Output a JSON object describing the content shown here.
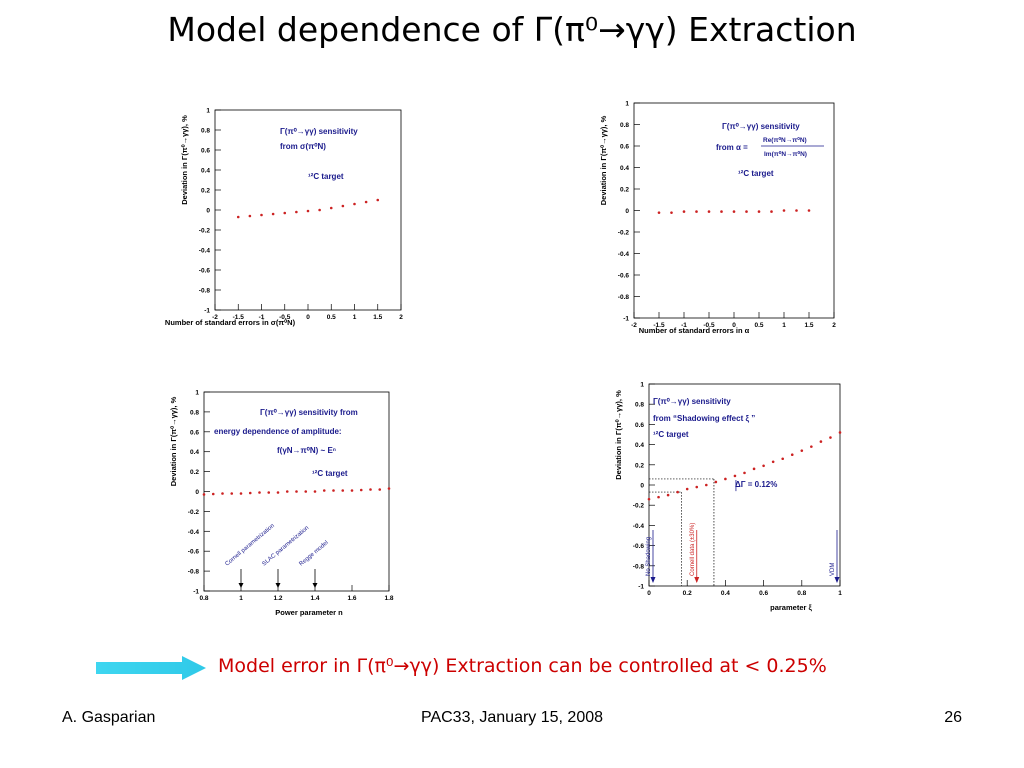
{
  "slide": {
    "title": "Model dependence of Γ(π⁰→γγ) Extraction",
    "conclusion": "Model error in Γ(π⁰→γγ) Extraction can be controlled at < 0.25%",
    "footer_left": "A. Gasparian",
    "footer_center": "PAC33, January 15, 2008",
    "footer_right": "26"
  },
  "colors": {
    "points": "#cc2222",
    "annotation_text": "#1a1a8c",
    "arrow": "#3ed6f0",
    "conclusion": "#cc0000"
  },
  "chart_data": [
    {
      "type": "scatter",
      "ylabel": "Deviation in Γ(π⁰→γγ), %",
      "xlabel": "Number of standard errors in σ(π⁰N)",
      "xlim": [
        -2,
        2
      ],
      "ylim": [
        -1,
        1
      ],
      "xticks": [
        "-2",
        "-1.5",
        "-1",
        "-0.5",
        "0",
        "0.5",
        "1",
        "1.5",
        "2"
      ],
      "yticks": [
        "-1",
        "-0.8",
        "-0.6",
        "-0.4",
        "-0.2",
        "0",
        "0.2",
        "0.4",
        "0.6",
        "0.8",
        "1"
      ],
      "annotations": [
        "Γ(π⁰→γγ) sensitivity",
        "from σ(π⁰N)",
        "¹²C target"
      ],
      "x": [
        -1.5,
        -1.25,
        -1.0,
        -0.75,
        -0.5,
        -0.25,
        0,
        0.25,
        0.5,
        0.75,
        1.0,
        1.25,
        1.5
      ],
      "y": [
        -0.07,
        -0.06,
        -0.05,
        -0.04,
        -0.03,
        -0.02,
        -0.01,
        0.0,
        0.02,
        0.04,
        0.06,
        0.08,
        0.1
      ]
    },
    {
      "type": "scatter",
      "ylabel": "Deviation in Γ(π⁰→γγ), %",
      "xlabel": "Number of standard errors in α",
      "xlim": [
        -2,
        2
      ],
      "ylim": [
        -1,
        1
      ],
      "xticks": [
        "-2",
        "-1.5",
        "-1",
        "-0.5",
        "0",
        "0.5",
        "1",
        "1.5",
        "2"
      ],
      "yticks": [
        "-1",
        "-0.8",
        "-0.6",
        "-0.4",
        "-0.2",
        "0",
        "0.2",
        "0.4",
        "0.6",
        "0.8",
        "1"
      ],
      "annotations": [
        "Γ(π⁰→γγ) sensitivity",
        "from α =",
        "Re(π⁰N→π⁰N)",
        "Im(π⁰N→π⁰N)",
        "¹²C target"
      ],
      "x": [
        -1.5,
        -1.25,
        -1.0,
        -0.75,
        -0.5,
        -0.25,
        0,
        0.25,
        0.5,
        0.75,
        1.0,
        1.25,
        1.5
      ],
      "y": [
        -0.02,
        -0.02,
        -0.01,
        -0.01,
        -0.01,
        -0.01,
        -0.01,
        -0.01,
        -0.01,
        -0.01,
        0.0,
        0.0,
        0.0
      ]
    },
    {
      "type": "scatter",
      "ylabel": "Deviation in Γ(π⁰→γγ), %",
      "xlabel": "Power parameter n",
      "xlim": [
        0.8,
        1.8
      ],
      "ylim": [
        -1,
        1
      ],
      "xticks": [
        "0.8",
        "1",
        "1.2",
        "1.4",
        "1.6",
        "1.8"
      ],
      "yticks": [
        "-1",
        "-0.8",
        "-0.6",
        "-0.4",
        "-0.2",
        "0",
        "0.2",
        "0.4",
        "0.6",
        "0.8",
        "1"
      ],
      "annotations": [
        "Γ(π⁰→γγ) sensitivity from",
        "energy dependence of amplitude:",
        "f(γN→π⁰N) ~ Eⁿ",
        "¹²C target"
      ],
      "markers": [
        {
          "label": "Cornell parametrization",
          "x": 1.0
        },
        {
          "label": "SLAC parametrization",
          "x": 1.2
        },
        {
          "label": "Regge model",
          "x": 1.4
        }
      ],
      "x": [
        0.8,
        0.85,
        0.9,
        0.95,
        1.0,
        1.05,
        1.1,
        1.15,
        1.2,
        1.25,
        1.3,
        1.35,
        1.4,
        1.45,
        1.5,
        1.55,
        1.6,
        1.65,
        1.7,
        1.75,
        1.8
      ],
      "y": [
        -0.03,
        -0.025,
        -0.02,
        -0.02,
        -0.02,
        -0.015,
        -0.01,
        -0.01,
        -0.01,
        0.0,
        0.0,
        0.0,
        0.0,
        0.01,
        0.01,
        0.01,
        0.01,
        0.015,
        0.02,
        0.02,
        0.03
      ]
    },
    {
      "type": "scatter",
      "ylabel": "Deviation in Γ(π⁰→γγ), %",
      "xlabel": "parameter ξ",
      "xlim": [
        0,
        1
      ],
      "ylim": [
        -1,
        1
      ],
      "xticks": [
        "0",
        "0.2",
        "0.4",
        "0.6",
        "0.8",
        "1"
      ],
      "yticks": [
        "-1",
        "-0.8",
        "-0.6",
        "-0.4",
        "-0.2",
        "0",
        "0.2",
        "0.4",
        "0.6",
        "0.8",
        "1"
      ],
      "annotations": [
        "Γ(π⁰→γγ) sensitivity",
        "from “Shadowing effect  ξ ”",
        "¹²C target",
        "ΔΓ = 0.12%"
      ],
      "markers": [
        {
          "label": "No Shadowing",
          "x": 0.0
        },
        {
          "label": "Cornell data (±30%)",
          "x": 0.25
        },
        {
          "label": "VDM",
          "x": 1.0
        }
      ],
      "x": [
        0.0,
        0.05,
        0.1,
        0.15,
        0.2,
        0.25,
        0.3,
        0.35,
        0.4,
        0.45,
        0.5,
        0.55,
        0.6,
        0.65,
        0.7,
        0.75,
        0.8,
        0.85,
        0.9,
        0.95,
        1.0
      ],
      "y": [
        -0.14,
        -0.12,
        -0.1,
        -0.07,
        -0.04,
        -0.02,
        0.0,
        0.03,
        0.06,
        0.09,
        0.12,
        0.16,
        0.19,
        0.23,
        0.26,
        0.3,
        0.34,
        0.38,
        0.43,
        0.47,
        0.52
      ]
    }
  ]
}
